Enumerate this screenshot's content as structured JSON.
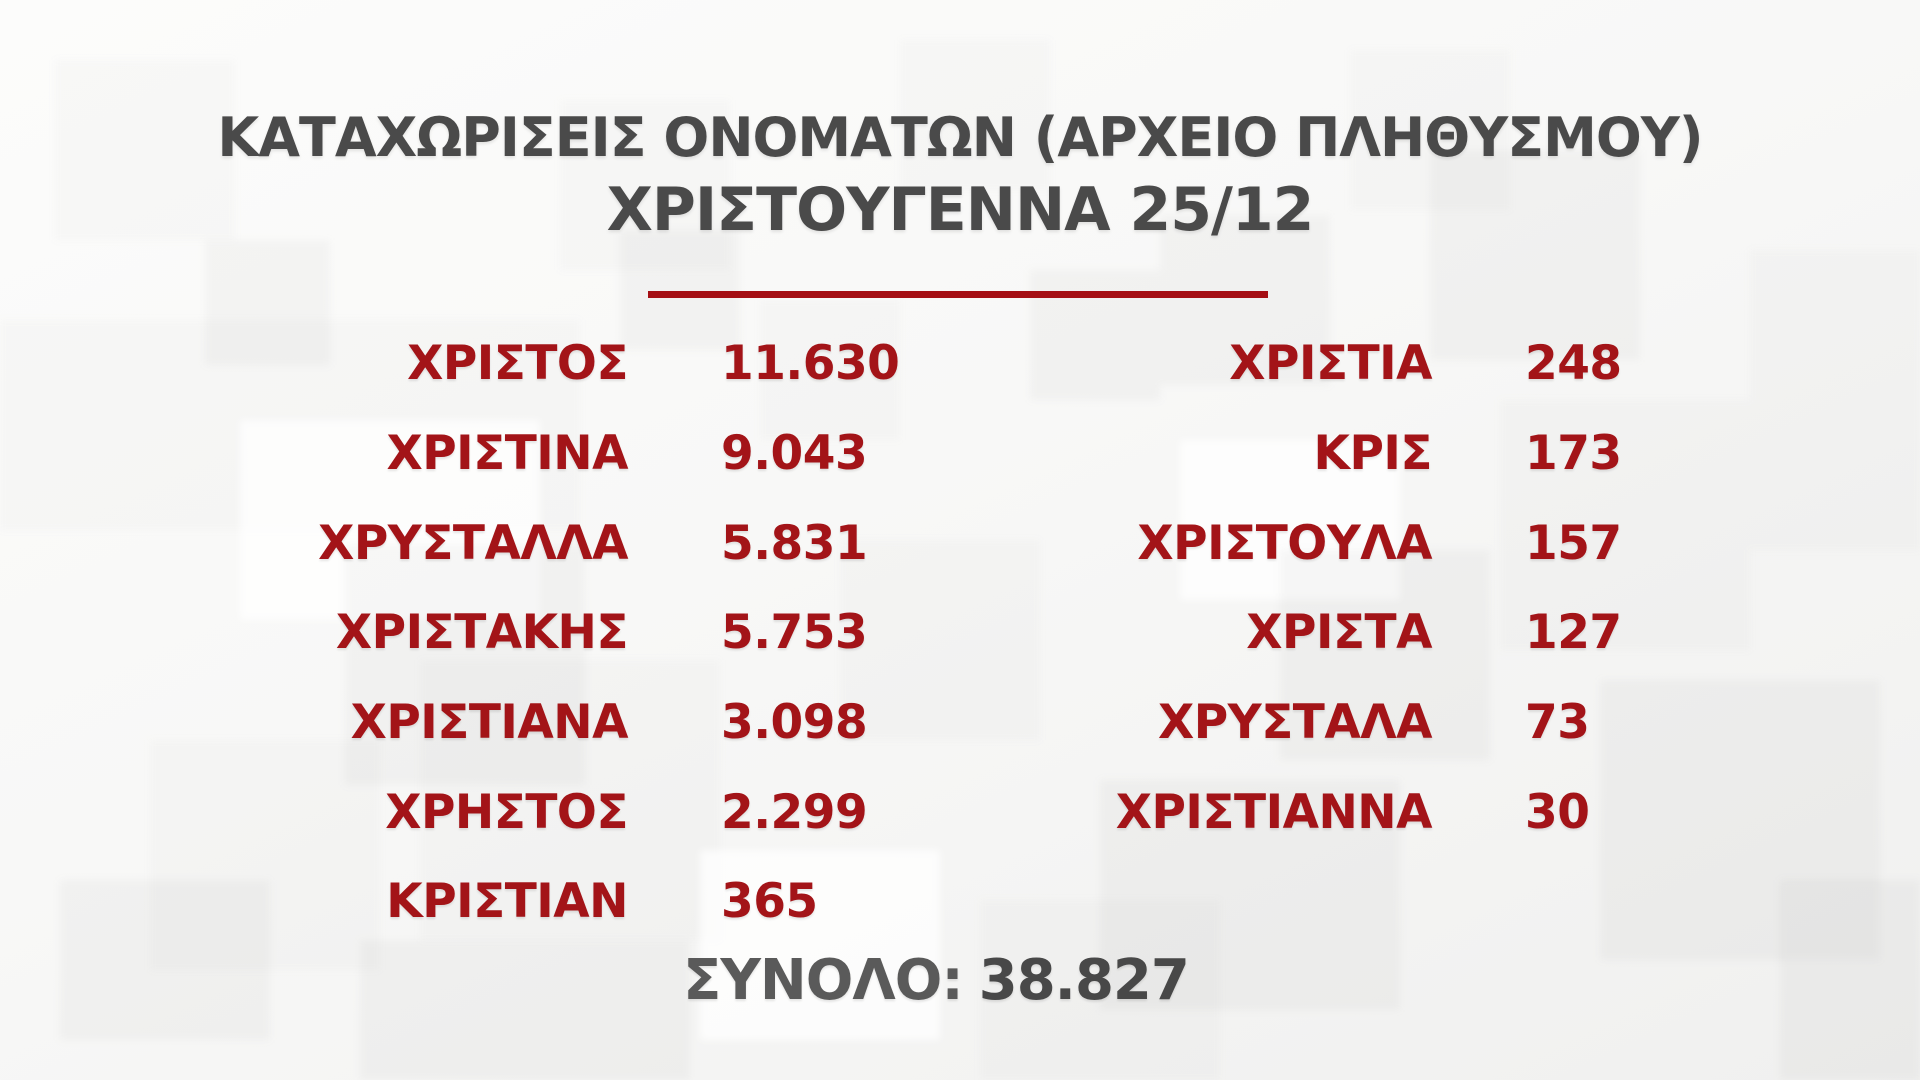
{
  "header": {
    "title": "ΚΑΤΑΧΩΡΙΣΕΙΣ ΟΝΟΜΑΤΩΝ (ΑΡΧΕΙΟ ΠΛΗΘΥΣΜΟΥ)",
    "subtitle": "ΧΡΙΣΤΟΥΓΕΝΝΑ 25/12"
  },
  "colors": {
    "accent_red": "#A31418",
    "divider_red": "#A50F14",
    "title_gray": "#4A4A4A",
    "total_label_gray": "#5A5A5A",
    "total_value_gray": "#484848"
  },
  "chart_data": {
    "type": "table",
    "title": "ΚΑΤΑΧΩΡΙΣΕΙΣ ΟΝΟΜΑΤΩΝ (ΑΡΧΕΙΟ ΠΛΗΘΥΣΜΟΥ)",
    "subtitle": "ΧΡΙΣΤΟΥΓΕΝΝΑ 25/12",
    "left_column": [
      {
        "name": "ΧΡΙΣΤΟΣ",
        "count": "11.630",
        "value": 11630
      },
      {
        "name": "ΧΡΙΣΤΙΝΑ",
        "count": "9.043",
        "value": 9043
      },
      {
        "name": "ΧΡΥΣΤΑΛΛΑ",
        "count": "5.831",
        "value": 5831
      },
      {
        "name": "ΧΡΙΣΤΑΚΗΣ",
        "count": "5.753",
        "value": 5753
      },
      {
        "name": "ΧΡΙΣΤΙΑΝΑ",
        "count": "3.098",
        "value": 3098
      },
      {
        "name": "ΧΡΗΣΤΟΣ",
        "count": "2.299",
        "value": 2299
      },
      {
        "name": "ΚΡΙΣΤΙΑΝ",
        "count": "365",
        "value": 365
      }
    ],
    "right_column": [
      {
        "name": "ΧΡΙΣΤΙΑ",
        "count": "248",
        "value": 248
      },
      {
        "name": "ΚΡΙΣ",
        "count": "173",
        "value": 173
      },
      {
        "name": "ΧΡΙΣΤΟΥΛΑ",
        "count": "157",
        "value": 157
      },
      {
        "name": "ΧΡΙΣΤΑ",
        "count": "127",
        "value": 127
      },
      {
        "name": "ΧΡΥΣΤΑΛΑ",
        "count": "73",
        "value": 73
      },
      {
        "name": "ΧΡΙΣΤΙΑΝΝΑ",
        "count": "30",
        "value": 30
      }
    ],
    "total_label": "ΣΥΝΟΛΟ:",
    "total_value": "38.827",
    "total_numeric": 38827
  }
}
